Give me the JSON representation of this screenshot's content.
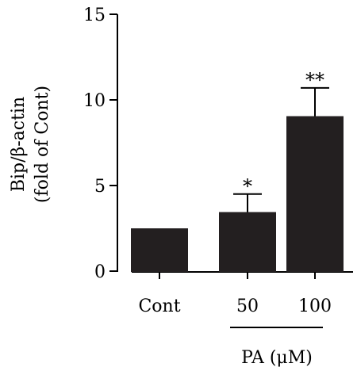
{
  "chart_data": {
    "type": "bar",
    "categories": [
      "Cont",
      "50",
      "100"
    ],
    "values": [
      2.5,
      3.45,
      9.05
    ],
    "errors": [
      0,
      1.05,
      1.65
    ],
    "significance": [
      "",
      "*",
      "**"
    ],
    "ylabel_line1": "Bip/β-actin",
    "ylabel_line2": "(fold of Cont)",
    "group_label": "PA (μM)",
    "ylim": [
      0,
      15
    ],
    "yticks": [
      0,
      5,
      10,
      15
    ],
    "ytick_labels": [
      "0",
      "5",
      "10",
      "15"
    ],
    "bar_color": "#231f20",
    "grid": false
  }
}
